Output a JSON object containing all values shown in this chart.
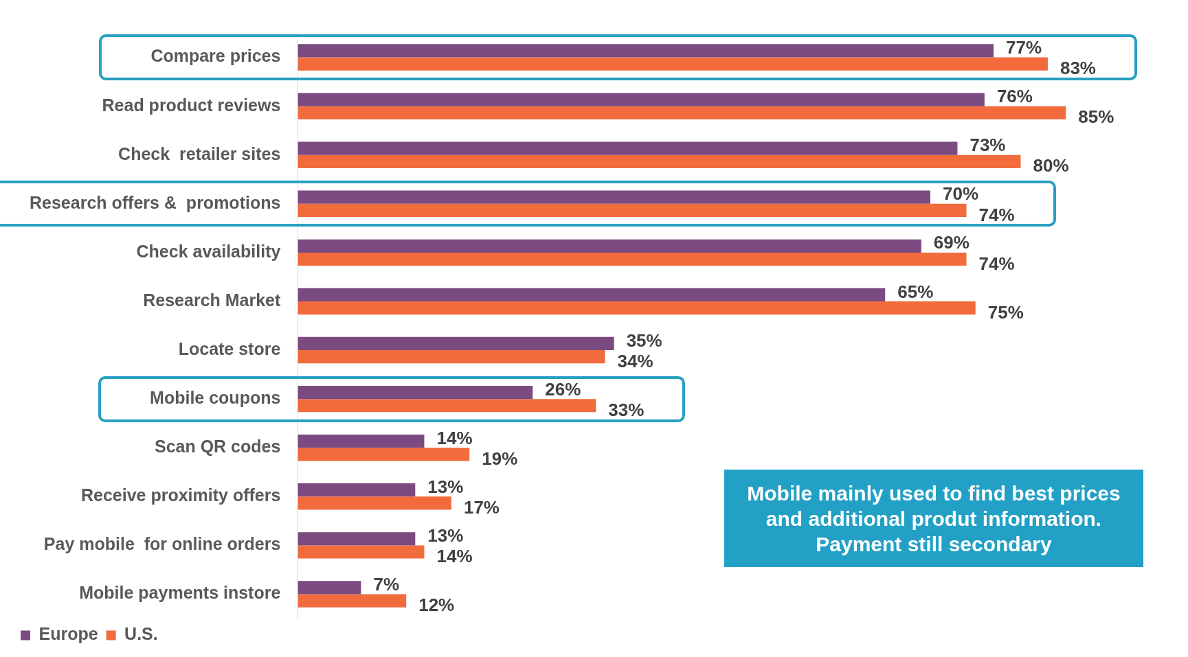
{
  "chart_data": {
    "type": "bar",
    "orientation": "horizontal",
    "categories": [
      "Compare prices",
      "Read product reviews",
      "Check  retailer sites",
      "Research offers &  promotions",
      "Check availability",
      "Research Market",
      "Locate store",
      "Mobile coupons",
      "Scan QR codes",
      "Receive proximity offers",
      "Pay mobile  for online orders",
      "Mobile payments instore"
    ],
    "series": [
      {
        "name": "Europe",
        "color": "#7b4a80",
        "values": [
          77,
          76,
          73,
          70,
          69,
          65,
          35,
          26,
          14,
          13,
          13,
          7
        ],
        "value_labels": [
          "77%",
          "76%",
          "73%",
          "70%",
          "69%",
          "65%",
          "35%",
          "26%",
          "14%",
          "13%",
          "13%",
          "7%"
        ]
      },
      {
        "name": "U.S.",
        "color": "#f26b3c",
        "values": [
          83,
          85,
          80,
          74,
          74,
          75,
          34,
          33,
          19,
          17,
          14,
          12
        ],
        "value_labels": [
          "83%",
          "85%",
          "80%",
          "74%",
          "74%",
          "75%",
          "34%",
          "33%",
          "19%",
          "17%",
          "14%",
          "12%"
        ]
      }
    ],
    "legend": "bottom left",
    "grid": false,
    "annotations": [
      "Mobile mainly used to find best prices\nand additional produt information.\nPayment still secondary"
    ]
  }
}
